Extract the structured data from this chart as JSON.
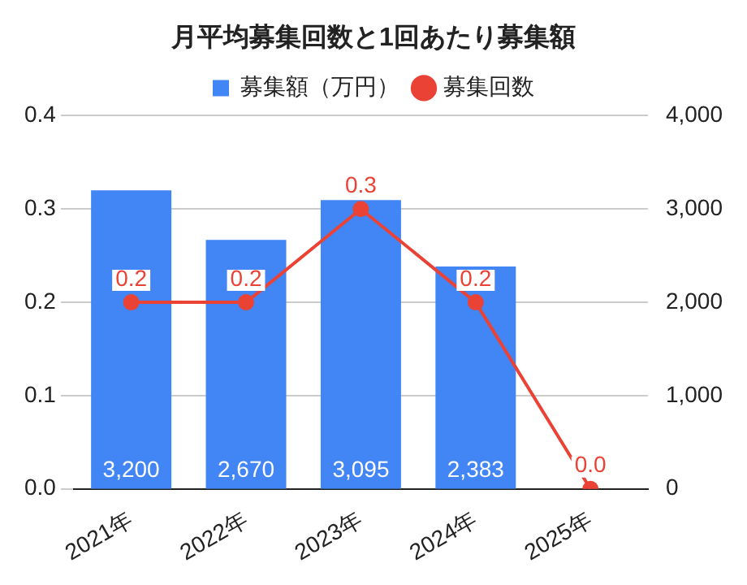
{
  "chart_data": {
    "type": "bar",
    "title": "月平均募集回数と1回あたり募集額",
    "categories": [
      "2021年",
      "2022年",
      "2023年",
      "2024年",
      "2025年"
    ],
    "series": [
      {
        "name": "募集額（万円）",
        "axis": "y2",
        "color": "#4285f4",
        "values": [
          3200,
          2670,
          3095,
          2383,
          null
        ],
        "value_labels": [
          "3,200",
          "2,670",
          "3,095",
          "2,383",
          null
        ]
      },
      {
        "name": "募集回数",
        "type": "line",
        "color": "#ea4335",
        "marker": "circle",
        "values": [
          0.2,
          0.2,
          0.3,
          0.2,
          0.0
        ],
        "value_labels": [
          "0.2",
          "0.2",
          "0.3",
          "0.2",
          "0.0"
        ]
      }
    ],
    "ylim": [
      0,
      0.4
    ],
    "yticks": [
      {
        "value": 0,
        "label": "0.0"
      },
      {
        "value": 0.1,
        "label": "0.1"
      },
      {
        "value": 0.2,
        "label": "0.2"
      },
      {
        "value": 0.3,
        "label": "0.3"
      },
      {
        "value": 0.4,
        "label": "0.4"
      }
    ],
    "y2lim": [
      0,
      4000
    ],
    "y2ticks": [
      0,
      {
        "value": 1000,
        "label": "1,000"
      },
      {
        "value": 2000,
        "label": "2,000"
      },
      {
        "value": 3000,
        "label": "3,000"
      },
      {
        "value": 4000,
        "label": "4,000"
      }
    ],
    "grid": "y",
    "legend": "top"
  }
}
